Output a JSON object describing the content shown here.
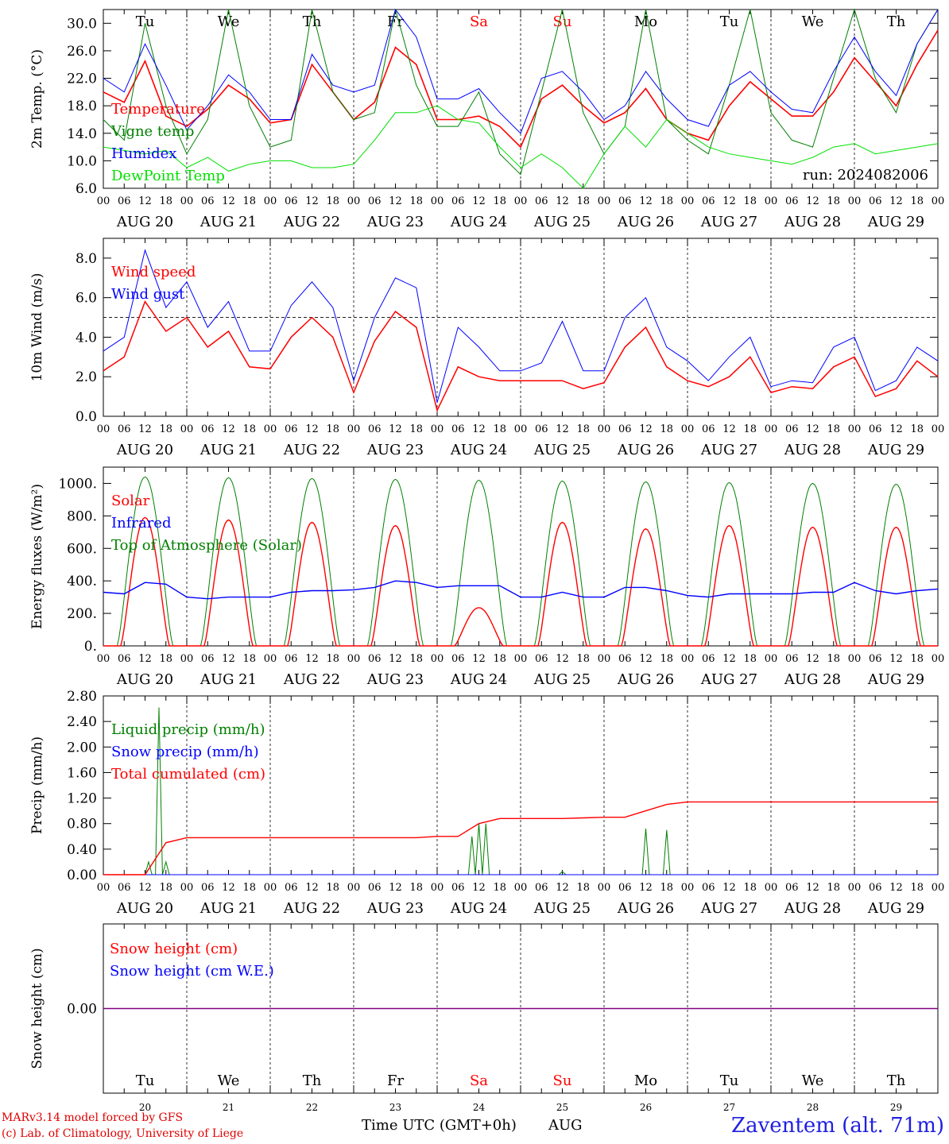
{
  "colors": {
    "red": "#ff0000",
    "green": "#008000",
    "blue": "#0000ff",
    "lightgreen": "#00e000",
    "purple": "#800080",
    "axis": "#000000"
  },
  "footer": {
    "credit_line1": "MARv3.14 model forced by GFS",
    "credit_line2": "(c) Lab. of Climatology, University of Liege",
    "station": "Zaventem (alt. 71m)",
    "xlabel": "Time UTC (GMT+0h)",
    "month": "AUG"
  },
  "chart_data": [
    {
      "type": "line",
      "ylabel": "2m Temp. (°C)",
      "ylim": [
        6,
        32
      ],
      "yticks": [
        "6.0",
        "10.0",
        "14.0",
        "18.0",
        "22.0",
        "26.0",
        "30.0"
      ],
      "day_names": [
        "Tu",
        "We",
        "Th",
        "Fr",
        "Sa",
        "Su",
        "Mo",
        "Tu",
        "We",
        "Th"
      ],
      "weekend_days": [
        "Sa",
        "Su"
      ],
      "annotation": "run: 2024082006",
      "legend": [
        "Temperature",
        "Vigne temp",
        "Humidex",
        "DewPoint Temp"
      ],
      "x_hours": [
        0,
        6,
        12,
        18,
        24,
        30,
        36,
        42,
        48,
        54,
        60,
        66,
        72,
        78,
        84,
        90,
        96,
        102,
        108,
        114,
        120,
        126,
        132,
        138,
        144,
        150,
        156,
        162,
        168,
        174,
        180,
        186,
        192,
        198,
        204,
        210,
        216,
        222,
        228,
        234,
        240
      ],
      "series": [
        {
          "name": "Temperature",
          "color": "red",
          "values": [
            20,
            18.5,
            24.5,
            16.5,
            15,
            17.5,
            21,
            19,
            15.5,
            16,
            24,
            20,
            16,
            18.5,
            26.5,
            24,
            16,
            16,
            16.5,
            15,
            12,
            19,
            21,
            18,
            15.5,
            17,
            20.5,
            16,
            14,
            13,
            18,
            21.5,
            19,
            16.5,
            16.5,
            20,
            25,
            21.5,
            18,
            24,
            29
          ]
        },
        {
          "name": "Vigne temp",
          "color": "green",
          "values": [
            16,
            13,
            30,
            18,
            11,
            16,
            32,
            18,
            12,
            13,
            32,
            20,
            16,
            17,
            32,
            21,
            15,
            15,
            20,
            11,
            8,
            20,
            32,
            17,
            11,
            15,
            32,
            16,
            13,
            11,
            21,
            32,
            17,
            13,
            12,
            22,
            32,
            22,
            17,
            27,
            32
          ]
        },
        {
          "name": "Humidex",
          "color": "blue",
          "values": [
            22,
            20,
            27,
            21,
            14.5,
            18,
            22.5,
            20,
            16,
            16,
            25.5,
            21,
            20,
            21,
            32,
            28,
            19,
            19,
            20.5,
            17,
            14,
            22,
            23,
            20,
            16,
            18,
            23,
            19,
            16,
            15,
            21,
            23,
            20,
            17.5,
            17,
            23,
            28,
            23,
            19.5,
            27,
            32
          ]
        },
        {
          "name": "DewPoint Temp",
          "color": "lightgreen",
          "values": [
            12,
            11.5,
            11,
            11.5,
            9,
            10.5,
            8.5,
            9.5,
            10,
            10,
            9,
            9,
            9.5,
            13,
            17,
            17,
            18,
            16,
            15.5,
            12,
            9,
            11,
            9,
            5.5,
            11,
            15,
            12,
            16,
            14,
            12,
            11,
            10.5,
            10,
            9.5,
            10.5,
            12,
            12.5,
            11,
            11.5,
            12,
            12.5
          ]
        }
      ]
    },
    {
      "type": "line",
      "ylabel": "10m Wind (m/s)",
      "ylim": [
        0,
        9
      ],
      "yticks": [
        "0.0",
        "2.0",
        "4.0",
        "6.0",
        "8.0"
      ],
      "reference_line": 5,
      "legend": [
        "Wind speed",
        "Wind gust"
      ],
      "x_hours": [
        0,
        6,
        12,
        18,
        24,
        30,
        36,
        42,
        48,
        54,
        60,
        66,
        72,
        78,
        84,
        90,
        96,
        102,
        108,
        114,
        120,
        126,
        132,
        138,
        144,
        150,
        156,
        162,
        168,
        174,
        180,
        186,
        192,
        198,
        204,
        210,
        216,
        222,
        228,
        234,
        240
      ],
      "series": [
        {
          "name": "Wind speed",
          "color": "red",
          "values": [
            2.3,
            3,
            5.8,
            4.3,
            5,
            3.5,
            4.3,
            2.5,
            2.4,
            4,
            5,
            4,
            1.2,
            3.8,
            5.3,
            4.5,
            0.3,
            2.5,
            2,
            1.8,
            1.8,
            1.8,
            1.8,
            1.4,
            1.7,
            3.5,
            4.5,
            2.5,
            1.8,
            1.5,
            2,
            3,
            1.2,
            1.5,
            1.4,
            2.5,
            3,
            1,
            1.4,
            2.8,
            2
          ]
        },
        {
          "name": "Wind gust",
          "color": "blue",
          "values": [
            3.3,
            4,
            8.4,
            5.5,
            6.8,
            4.5,
            5.8,
            3.3,
            3.3,
            5.6,
            6.8,
            5.5,
            1.8,
            5,
            7,
            6.5,
            0.7,
            4.5,
            3.5,
            2.3,
            2.3,
            2.7,
            4.8,
            2.3,
            2.3,
            5,
            6,
            3.5,
            2.8,
            1.8,
            3,
            4,
            1.5,
            1.8,
            1.7,
            3.5,
            4,
            1.3,
            1.8,
            3.5,
            2.8
          ]
        }
      ]
    },
    {
      "type": "line",
      "ylabel": "Energy fluxes (W/m²)",
      "ylim": [
        0,
        1100
      ],
      "yticks": [
        "0.",
        "200.",
        "400.",
        "600.",
        "800.",
        "1000."
      ],
      "legend": [
        "Solar",
        "Infrared",
        "Top of Atmosphere (Solar)"
      ],
      "series": [
        {
          "name": "Solar",
          "color": "red",
          "day_peaks": [
            790,
            775,
            760,
            740,
            235,
            760,
            720,
            740,
            730,
            730
          ]
        },
        {
          "name": "Infrared",
          "color": "blue",
          "x_hours": [
            0,
            6,
            12,
            18,
            24,
            30,
            36,
            42,
            48,
            54,
            60,
            66,
            72,
            78,
            84,
            90,
            96,
            102,
            108,
            114,
            120,
            126,
            132,
            138,
            144,
            150,
            156,
            162,
            168,
            174,
            180,
            186,
            192,
            198,
            204,
            210,
            216,
            222,
            228,
            234,
            240
          ],
          "values": [
            330,
            320,
            390,
            380,
            300,
            290,
            300,
            300,
            300,
            330,
            340,
            340,
            345,
            360,
            400,
            390,
            360,
            370,
            370,
            370,
            300,
            300,
            330,
            300,
            300,
            360,
            360,
            340,
            310,
            300,
            320,
            320,
            320,
            320,
            330,
            330,
            390,
            340,
            320,
            340,
            350
          ]
        },
        {
          "name": "Top of Atmosphere (Solar)",
          "color": "green",
          "day_peaks": [
            1040,
            1035,
            1030,
            1025,
            1020,
            1015,
            1010,
            1005,
            1000,
            995
          ]
        }
      ]
    },
    {
      "type": "line",
      "ylabel": "Precip (mm/h)",
      "ylim": [
        0,
        2.8
      ],
      "yticks": [
        "0.00",
        "0.40",
        "0.80",
        "1.20",
        "1.60",
        "2.00",
        "2.40",
        "2.80"
      ],
      "legend": [
        "Liquid precip (mm/h)",
        "Snow precip (mm/h)",
        "Total cumulated (cm)"
      ],
      "x_hours": [
        0,
        6,
        12,
        18,
        24,
        30,
        36,
        42,
        48,
        54,
        60,
        66,
        72,
        78,
        84,
        90,
        96,
        102,
        108,
        114,
        120,
        126,
        132,
        138,
        144,
        150,
        156,
        162,
        168,
        174,
        180,
        186,
        192,
        198,
        204,
        210,
        216,
        222,
        228,
        234,
        240
      ],
      "series": [
        {
          "name": "Liquid precip (mm/h)",
          "color": "green",
          "values": [
            0,
            0,
            0,
            0.2,
            0,
            0,
            0,
            0,
            0,
            0,
            0,
            0,
            0,
            0,
            0,
            0,
            0,
            0,
            0.8,
            0,
            0,
            0,
            0.05,
            0,
            0,
            0,
            0.05,
            0.7,
            0,
            0,
            0,
            0,
            0,
            0,
            0,
            0,
            0,
            0,
            0,
            0,
            0
          ],
          "spikes": [
            {
              "hour": 16,
              "value": 2.62
            },
            {
              "hour": 13,
              "value": 0.2
            },
            {
              "hour": 106,
              "value": 0.6
            },
            {
              "hour": 110,
              "value": 0.8
            },
            {
              "hour": 156,
              "value": 0.72
            }
          ]
        },
        {
          "name": "Snow precip (mm/h)",
          "color": "blue",
          "values": [
            0,
            0,
            0,
            0,
            0,
            0,
            0,
            0,
            0,
            0,
            0,
            0,
            0,
            0,
            0,
            0,
            0,
            0,
            0,
            0,
            0,
            0,
            0,
            0,
            0,
            0,
            0,
            0,
            0,
            0,
            0,
            0,
            0,
            0,
            0,
            0,
            0,
            0,
            0,
            0,
            0
          ]
        },
        {
          "name": "Total cumulated (cm)",
          "color": "red",
          "values": [
            0,
            0,
            0,
            0.5,
            0.58,
            0.58,
            0.58,
            0.58,
            0.58,
            0.58,
            0.58,
            0.58,
            0.58,
            0.58,
            0.58,
            0.58,
            0.6,
            0.6,
            0.8,
            0.88,
            0.88,
            0.88,
            0.88,
            0.89,
            0.9,
            0.9,
            1.0,
            1.1,
            1.14,
            1.14,
            1.14,
            1.14,
            1.14,
            1.14,
            1.14,
            1.14,
            1.14,
            1.14,
            1.14,
            1.14,
            1.14
          ]
        }
      ]
    },
    {
      "type": "line",
      "ylabel": "Snow height (cm)",
      "ylim": [
        -1,
        1
      ],
      "yticks": [
        "0.00"
      ],
      "legend": [
        "Snow height (cm)",
        "Snow height (cm W.E.)"
      ],
      "series": [
        {
          "name": "Snow height (cm)",
          "color": "red",
          "values": [
            0,
            0
          ]
        },
        {
          "name": "Snow height (cm W.E.)",
          "color": "blue",
          "values": [
            0,
            0
          ]
        }
      ],
      "day_names": [
        "Tu",
        "We",
        "Th",
        "Fr",
        "Sa",
        "Su",
        "Mo",
        "Tu",
        "We",
        "Th"
      ],
      "day_numbers": [
        "20",
        "21",
        "22",
        "23",
        "24",
        "25",
        "26",
        "27",
        "28",
        "29"
      ]
    }
  ],
  "x_axis": {
    "hour_labels": [
      "00",
      "06",
      "12",
      "18"
    ],
    "final_label": "00",
    "dates": [
      "AUG 20",
      "AUG 21",
      "AUG 22",
      "AUG 23",
      "AUG 24",
      "AUG 25",
      "AUG 26",
      "AUG 27",
      "AUG 28",
      "AUG 29"
    ]
  }
}
